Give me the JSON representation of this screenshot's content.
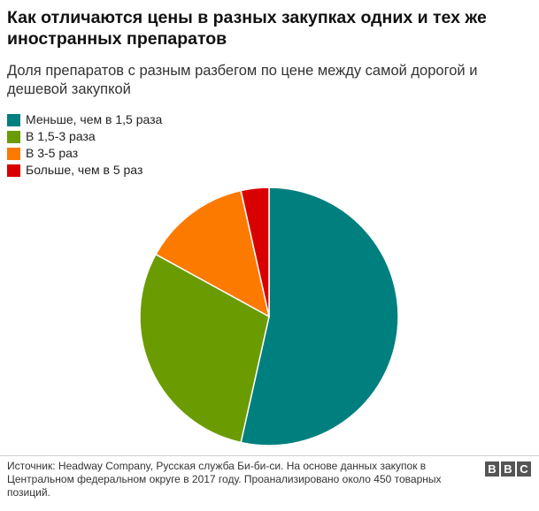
{
  "title": "Как отличаются цены в разных закупках одних и тех же иностранных препаратов",
  "subtitle": "Доля препаратов с разным разбегом по цене между самой дорогой и дешевой закупкой",
  "legend": [
    {
      "label": "Меньше, чем в 1,5 раза",
      "color": "#007f7f"
    },
    {
      "label": "В 1,5-3 раза",
      "color": "#6a9b00"
    },
    {
      "label": "В 3-5 раз",
      "color": "#fc7a00"
    },
    {
      "label": "Больше, чем в 5 раз",
      "color": "#d90000"
    }
  ],
  "source": "Источник: Headway Company, Русская служба Би-би-си. На основе данных закупок в Центральном федеральном округе в 2017 году. Проанализировано около 450 товарных позиций.",
  "logo": [
    "B",
    "B",
    "C"
  ],
  "chart_data": {
    "type": "pie",
    "categories": [
      "Меньше, чем в 1,5 раза",
      "В 1,5-3 раза",
      "В 3-5 раз",
      "Больше, чем в 5 раз"
    ],
    "values": [
      53.5,
      29.5,
      13.5,
      3.5
    ],
    "colors": [
      "#007f7f",
      "#6a9b00",
      "#fc7a00",
      "#d90000"
    ],
    "title": "Как отличаются цены в разных закупках одних и тех же иностранных препаратов",
    "subtitle": "Доля препаратов с разным разбегом по цене между самой дорогой и дешевой закупкой",
    "legend_position": "top-left"
  }
}
